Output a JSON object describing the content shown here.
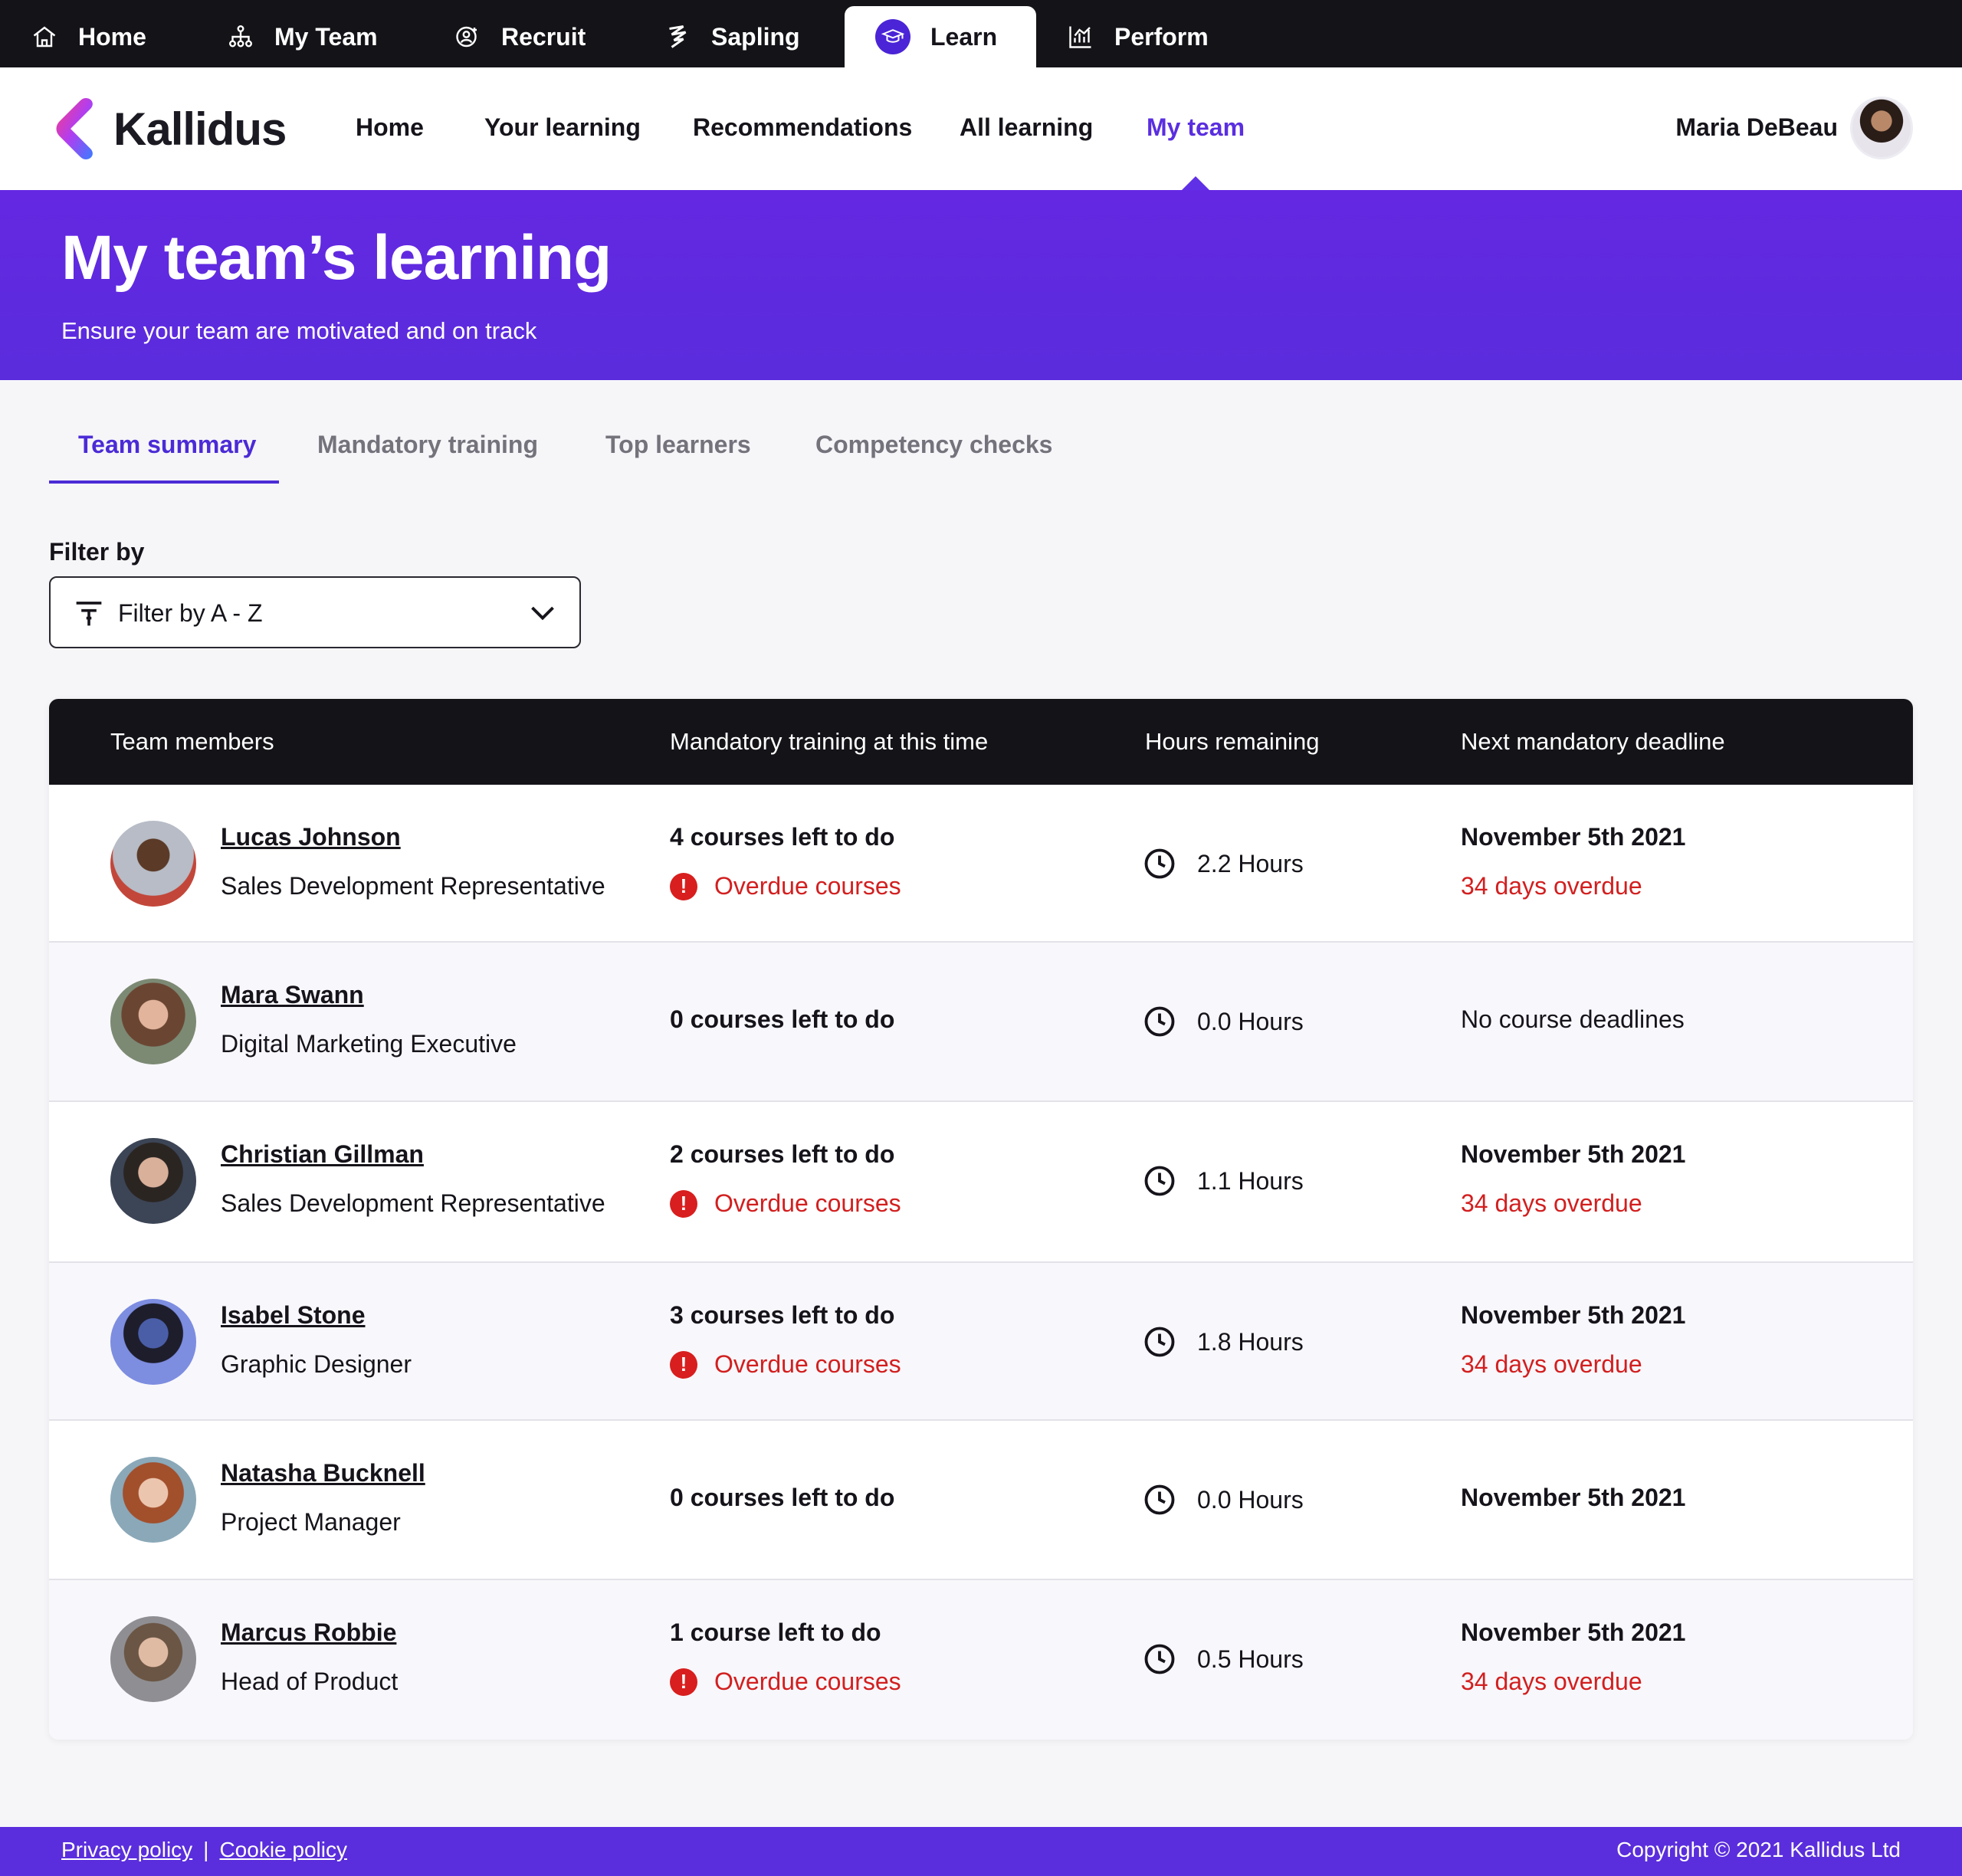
{
  "app_tabs": [
    {
      "label": "Home",
      "icon": "home-icon"
    },
    {
      "label": "My Team",
      "icon": "org-chart-icon"
    },
    {
      "label": "Recruit",
      "icon": "recruit-icon"
    },
    {
      "label": "Sapling",
      "icon": "sapling-icon"
    },
    {
      "label": "Learn",
      "icon": "graduation-cap-icon",
      "active": true
    },
    {
      "label": "Perform",
      "icon": "chart-icon"
    }
  ],
  "brand": {
    "name": "Kallidus",
    "accent": "#5a2ee0"
  },
  "nav": [
    {
      "label": "Home"
    },
    {
      "label": "Your learning"
    },
    {
      "label": "Recommendations"
    },
    {
      "label": "All learning"
    },
    {
      "label": "My team",
      "active": true
    }
  ],
  "user": {
    "name": "Maria DeBeau"
  },
  "hero": {
    "title": "My team’s learning",
    "subtitle": "Ensure your team are motivated and on track"
  },
  "tabs": [
    {
      "label": "Team summary",
      "active": true
    },
    {
      "label": "Mandatory training"
    },
    {
      "label": "Top learners"
    },
    {
      "label": "Competency checks"
    }
  ],
  "filter": {
    "label": "Filter by",
    "value": "Filter by A - Z"
  },
  "table": {
    "headers": [
      "Team members",
      "Mandatory training at this time",
      "Hours remaining",
      "Next mandatory deadline"
    ],
    "rows": [
      {
        "name": "Lucas Johnson",
        "role": "Sales Development Representative",
        "courses": "4 courses left to do",
        "overdue": "Overdue courses",
        "hours": "2.2 Hours",
        "deadline": "November 5th 2021",
        "days_overdue": "34 days overdue"
      },
      {
        "name": "Mara Swann",
        "role": "Digital Marketing Executive",
        "courses": "0 courses left to do",
        "overdue": "",
        "hours": "0.0 Hours",
        "deadline": "No course deadlines",
        "days_overdue": ""
      },
      {
        "name": "Christian Gillman",
        "role": "Sales Development Representative",
        "courses": "2 courses left to do",
        "overdue": "Overdue courses",
        "hours": "1.1 Hours",
        "deadline": "November 5th 2021",
        "days_overdue": "34 days overdue"
      },
      {
        "name": "Isabel Stone",
        "role": "Graphic Designer",
        "courses": "3 courses left to do",
        "overdue": "Overdue courses",
        "hours": "1.8 Hours",
        "deadline": "November 5th 2021",
        "days_overdue": "34 days overdue"
      },
      {
        "name": "Natasha Bucknell",
        "role": "Project Manager",
        "courses": "0 courses left to do",
        "overdue": "",
        "hours": "0.0 Hours",
        "deadline": "November 5th 2021",
        "days_overdue": ""
      },
      {
        "name": "Marcus Robbie",
        "role": "Head of Product",
        "courses": "1 course left to do",
        "overdue": "Overdue courses",
        "hours": "0.5 Hours",
        "deadline": "November 5th 2021",
        "days_overdue": "34 days overdue"
      }
    ]
  },
  "footer": {
    "privacy": "Privacy policy",
    "separator": "|",
    "cookie": "Cookie policy",
    "copyright": "Copyright © 2021 Kallidus Ltd"
  },
  "colors": {
    "overdue": "#d21f1f",
    "header_bg": "#141318",
    "hero_bg": "#6428e2"
  }
}
